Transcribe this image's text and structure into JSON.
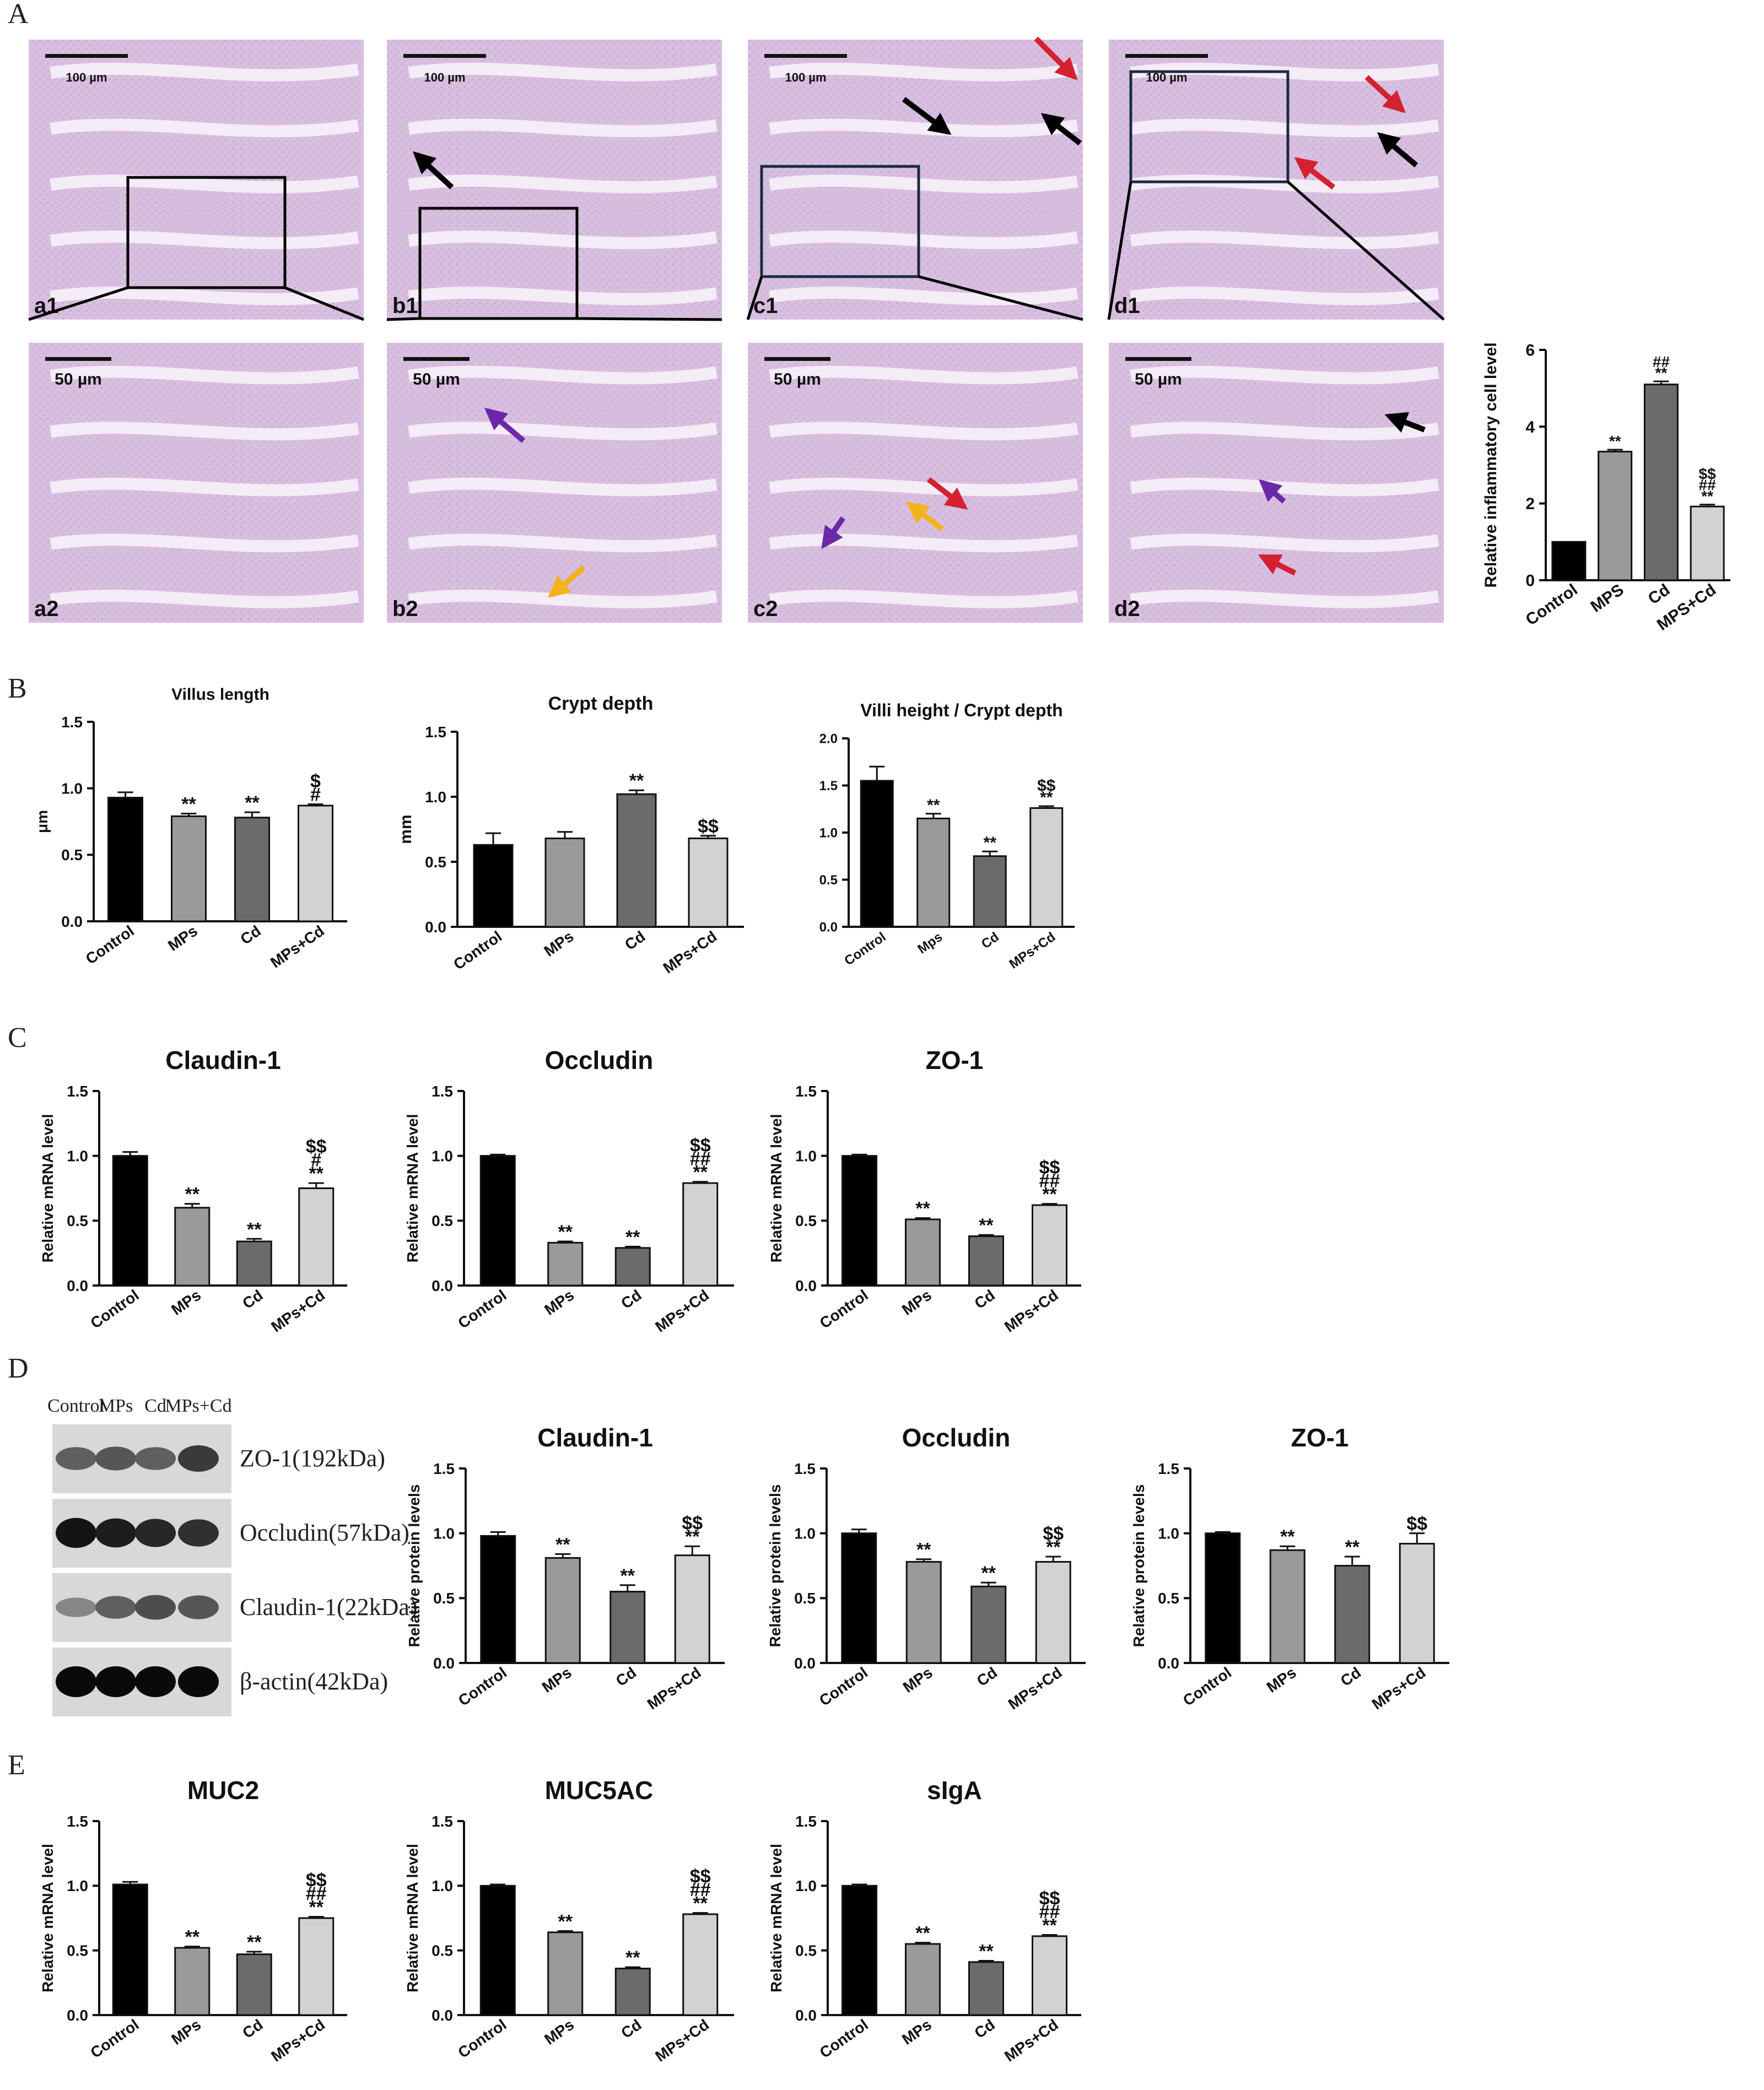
{
  "panel_letters": [
    "A",
    "B",
    "C",
    "D",
    "E"
  ],
  "colors": {
    "bar_fills": [
      "#000000",
      "#9a9a9a",
      "#6b6b6b",
      "#d2d2d2"
    ],
    "tissue_base": "#dcc0e0",
    "arrow_black": "#000000",
    "arrow_red": "#d42030",
    "arrow_purple": "#6a2aa8",
    "arrow_yellow": "#f2b31c"
  },
  "micrographs": [
    {
      "label": "a1",
      "scale": "100 µm",
      "arrows": []
    },
    {
      "label": "b1",
      "scale": "100 µm",
      "arrows": [
        "black"
      ]
    },
    {
      "label": "c1",
      "scale": "100 µm",
      "arrows": [
        "red",
        "black",
        "black"
      ]
    },
    {
      "label": "d1",
      "scale": "100 µm",
      "arrows": [
        "red",
        "black",
        "red"
      ]
    },
    {
      "label": "a2",
      "scale": "50 µm",
      "arrows": []
    },
    {
      "label": "b2",
      "scale": "50 µm",
      "arrows": [
        "purple",
        "yellow"
      ]
    },
    {
      "label": "c2",
      "scale": "50 µm",
      "arrows": [
        "red",
        "purple",
        "yellow"
      ]
    },
    {
      "label": "d2",
      "scale": "50 µm",
      "arrows": [
        "black",
        "purple",
        "red"
      ]
    }
  ],
  "western_blot": {
    "lanes": [
      "Control",
      "MPs",
      "Cd",
      "MPs+Cd"
    ],
    "bands": [
      {
        "name": "ZO-1(192kDa)",
        "intensity": [
          0.55,
          0.6,
          0.55,
          0.75
        ]
      },
      {
        "name": "Occludin(57kDa)",
        "intensity": [
          0.95,
          0.9,
          0.85,
          0.8
        ]
      },
      {
        "name": "Claudin-1(22kDa)",
        "intensity": [
          0.35,
          0.55,
          0.65,
          0.6
        ]
      },
      {
        "name": "β-actin(42kDa)",
        "intensity": [
          1.0,
          1.0,
          1.0,
          1.0
        ]
      }
    ]
  },
  "chart_data": [
    {
      "panel": "A",
      "type": "bar",
      "title": "",
      "ylabel": "Relative inflammatory cell  level",
      "categories": [
        "Control",
        "MPS",
        "Cd",
        "MPS+Cd"
      ],
      "values": [
        1.0,
        3.35,
        5.1,
        1.92
      ],
      "errors": [
        0,
        0.05,
        0.08,
        0.05
      ],
      "ylim": [
        0,
        6
      ],
      "ticks": [
        0,
        2,
        4,
        6
      ],
      "sig": [
        [],
        [
          "**"
        ],
        [
          "##",
          "**"
        ],
        [
          "$$",
          "##",
          "**"
        ]
      ]
    },
    {
      "panel": "B",
      "type": "bar",
      "title": "Villus length",
      "ylabel": "μm",
      "categories": [
        "Control",
        "MPs",
        "Cd",
        "MPs+Cd"
      ],
      "values": [
        0.93,
        0.79,
        0.78,
        0.87
      ],
      "errors": [
        0.04,
        0.02,
        0.04,
        0.01
      ],
      "ylim": [
        0,
        1.5
      ],
      "ticks": [
        0.0,
        0.5,
        1.0,
        1.5
      ],
      "sig": [
        [],
        [
          "**"
        ],
        [
          "**"
        ],
        [
          "$",
          "#"
        ]
      ]
    },
    {
      "panel": "B",
      "type": "bar",
      "title": "Crypt depth",
      "ylabel": "mm",
      "categories": [
        "Control",
        "MPs",
        "Cd",
        "MPs+Cd"
      ],
      "values": [
        0.63,
        0.68,
        1.02,
        0.68
      ],
      "errors": [
        0.09,
        0.05,
        0.03,
        0.02
      ],
      "ylim": [
        0,
        1.5
      ],
      "ticks": [
        0.0,
        0.5,
        1.0,
        1.5
      ],
      "sig": [
        [],
        [],
        [
          "**"
        ],
        [
          "$$"
        ]
      ]
    },
    {
      "panel": "B",
      "type": "bar",
      "title": "Villi height / Crypt depth",
      "ylabel": "",
      "categories": [
        "Control",
        "Mps",
        "Cd",
        "MPs+Cd"
      ],
      "values": [
        1.55,
        1.15,
        0.75,
        1.26
      ],
      "errors": [
        0.15,
        0.05,
        0.05,
        0.02
      ],
      "ylim": [
        0,
        2.0
      ],
      "ticks": [
        0.0,
        0.5,
        1.0,
        1.5,
        2.0
      ],
      "sig": [
        [],
        [
          "**"
        ],
        [
          "**"
        ],
        [
          "$$",
          "**"
        ]
      ]
    },
    {
      "panel": "C",
      "type": "bar",
      "title": "Claudin-1",
      "ylabel": "Relative mRNA level",
      "categories": [
        "Control",
        "MPs",
        "Cd",
        "MPs+Cd"
      ],
      "values": [
        1.0,
        0.6,
        0.34,
        0.75
      ],
      "errors": [
        0.03,
        0.03,
        0.02,
        0.04
      ],
      "ylim": [
        0,
        1.5
      ],
      "ticks": [
        0.0,
        0.5,
        1.0,
        1.5
      ],
      "sig": [
        [],
        [
          "**"
        ],
        [
          "**"
        ],
        [
          "$$",
          "#",
          "**"
        ]
      ]
    },
    {
      "panel": "C",
      "type": "bar",
      "title": "Occludin",
      "ylabel": "Relative mRNA level",
      "categories": [
        "Control",
        "MPs",
        "Cd",
        "MPs+Cd"
      ],
      "values": [
        1.0,
        0.33,
        0.29,
        0.79
      ],
      "errors": [
        0.01,
        0.01,
        0.01,
        0.01
      ],
      "ylim": [
        0,
        1.5
      ],
      "ticks": [
        0.0,
        0.5,
        1.0,
        1.5
      ],
      "sig": [
        [],
        [
          "**"
        ],
        [
          "**"
        ],
        [
          "$$",
          "##",
          "**"
        ]
      ]
    },
    {
      "panel": "C",
      "type": "bar",
      "title": "ZO-1",
      "ylabel": "Relative mRNA level",
      "categories": [
        "Control",
        "MPs",
        "Cd",
        "MPs+Cd"
      ],
      "values": [
        1.0,
        0.51,
        0.38,
        0.62
      ],
      "errors": [
        0.01,
        0.01,
        0.01,
        0.01
      ],
      "ylim": [
        0,
        1.5
      ],
      "ticks": [
        0.0,
        0.5,
        1.0,
        1.5
      ],
      "sig": [
        [],
        [
          "**"
        ],
        [
          "**"
        ],
        [
          "$$",
          "##",
          "**"
        ]
      ]
    },
    {
      "panel": "D",
      "type": "bar",
      "title": "Claudin-1",
      "ylabel": "Relative protein levels",
      "categories": [
        "Control",
        "MPs",
        "Cd",
        "MPs+Cd"
      ],
      "values": [
        0.98,
        0.81,
        0.55,
        0.83
      ],
      "errors": [
        0.03,
        0.03,
        0.05,
        0.07
      ],
      "ylim": [
        0,
        1.5
      ],
      "ticks": [
        0.0,
        0.5,
        1.0,
        1.5
      ],
      "sig": [
        [],
        [
          "**"
        ],
        [
          "**"
        ],
        [
          "$$",
          "**"
        ]
      ]
    },
    {
      "panel": "D",
      "type": "bar",
      "title": "Occludin",
      "ylabel": "Relative protein levels",
      "categories": [
        "Control",
        "MPs",
        "Cd",
        "MPs+Cd"
      ],
      "values": [
        1.0,
        0.78,
        0.59,
        0.78
      ],
      "errors": [
        0.03,
        0.02,
        0.03,
        0.04
      ],
      "ylim": [
        0,
        1.5
      ],
      "ticks": [
        0.0,
        0.5,
        1.0,
        1.5
      ],
      "sig": [
        [],
        [
          "**"
        ],
        [
          "**"
        ],
        [
          "$$",
          "**"
        ]
      ]
    },
    {
      "panel": "D",
      "type": "bar",
      "title": "ZO-1",
      "ylabel": "Relative protein levels",
      "categories": [
        "Control",
        "MPs",
        "Cd",
        "MPs+Cd"
      ],
      "values": [
        1.0,
        0.87,
        0.75,
        0.92
      ],
      "errors": [
        0.01,
        0.03,
        0.07,
        0.08
      ],
      "ylim": [
        0,
        1.5
      ],
      "ticks": [
        0.0,
        0.5,
        1.0,
        1.5
      ],
      "sig": [
        [],
        [
          "**"
        ],
        [
          "**"
        ],
        [
          "$$"
        ]
      ]
    },
    {
      "panel": "E",
      "type": "bar",
      "title": "MUC2",
      "ylabel": "Relative mRNA level",
      "categories": [
        "Control",
        "MPs",
        "Cd",
        "MPs+Cd"
      ],
      "values": [
        1.01,
        0.52,
        0.47,
        0.75
      ],
      "errors": [
        0.02,
        0.01,
        0.02,
        0.01
      ],
      "ylim": [
        0,
        1.5
      ],
      "ticks": [
        0.0,
        0.5,
        1.0,
        1.5
      ],
      "sig": [
        [],
        [
          "**"
        ],
        [
          "**"
        ],
        [
          "$$",
          "##",
          "**"
        ]
      ]
    },
    {
      "panel": "E",
      "type": "bar",
      "title": "MUC5AC",
      "ylabel": "Relative mRNA level",
      "categories": [
        "Control",
        "MPs",
        "Cd",
        "MPs+Cd"
      ],
      "values": [
        1.0,
        0.64,
        0.36,
        0.78
      ],
      "errors": [
        0.01,
        0.01,
        0.01,
        0.01
      ],
      "ylim": [
        0,
        1.5
      ],
      "ticks": [
        0.0,
        0.5,
        1.0,
        1.5
      ],
      "sig": [
        [],
        [
          "**"
        ],
        [
          "**"
        ],
        [
          "$$",
          "##",
          "**"
        ]
      ]
    },
    {
      "panel": "E",
      "type": "bar",
      "title": "sIgA",
      "ylabel": "Relative mRNA level",
      "categories": [
        "Control",
        "MPs",
        "Cd",
        "MPs+Cd"
      ],
      "values": [
        1.0,
        0.55,
        0.41,
        0.61
      ],
      "errors": [
        0.01,
        0.01,
        0.01,
        0.01
      ],
      "ylim": [
        0,
        1.5
      ],
      "ticks": [
        0.0,
        0.5,
        1.0,
        1.5
      ],
      "sig": [
        [],
        [
          "**"
        ],
        [
          "**"
        ],
        [
          "$$",
          "##",
          "**"
        ]
      ]
    }
  ]
}
